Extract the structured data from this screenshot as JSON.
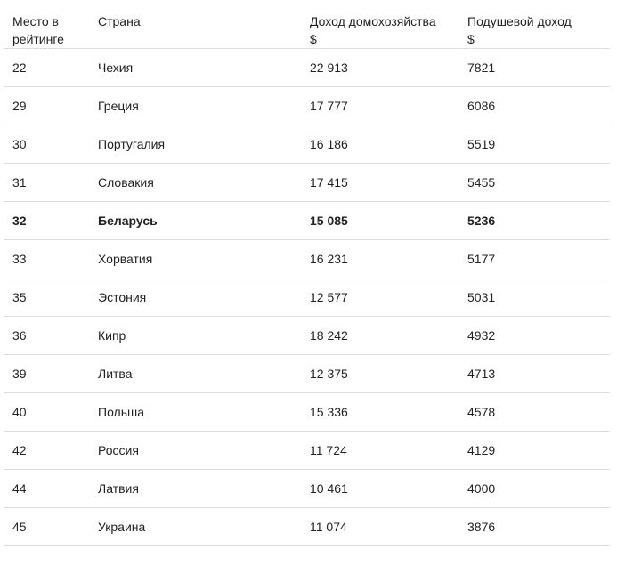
{
  "headers": {
    "rank": "Место в рейтинге",
    "country": "Страна",
    "household": "Доход домохозяйства",
    "household_unit": "$",
    "percapita": "Подушевой доход",
    "percapita_unit": "$"
  },
  "rows": [
    {
      "rank": "22",
      "country": "Чехия",
      "household": "22 913",
      "percapita": "7821"
    },
    {
      "rank": "29",
      "country": "Греция",
      "household": "17 777",
      "percapita": "6086"
    },
    {
      "rank": "30",
      "country": "Португалия",
      "household": "16 186",
      "percapita": "5519"
    },
    {
      "rank": "31",
      "country": "Словакия",
      "household": "17 415",
      "percapita": "5455"
    },
    {
      "rank": "32",
      "country": "Беларусь",
      "household": "15 085",
      "percapita": "5236",
      "highlighted": true
    },
    {
      "rank": "33",
      "country": "Хорватия",
      "household": "16 231",
      "percapita": "5177"
    },
    {
      "rank": "35",
      "country": "Эстония",
      "household": "12 577",
      "percapita": "5031"
    },
    {
      "rank": "36",
      "country": "Кипр",
      "household": "18 242",
      "percapita": "4932"
    },
    {
      "rank": "39",
      "country": "Литва",
      "household": "12 375",
      "percapita": "4713"
    },
    {
      "rank": "40",
      "country": "Польша",
      "household": "15 336",
      "percapita": "4578"
    },
    {
      "rank": "42",
      "country": "Россия",
      "household": "11 724",
      "percapita": "4129"
    },
    {
      "rank": "44",
      "country": "Латвия",
      "household": "10 461",
      "percapita": "4000"
    },
    {
      "rank": "45",
      "country": "Украина",
      "household": "11 074",
      "percapita": "3876"
    }
  ]
}
